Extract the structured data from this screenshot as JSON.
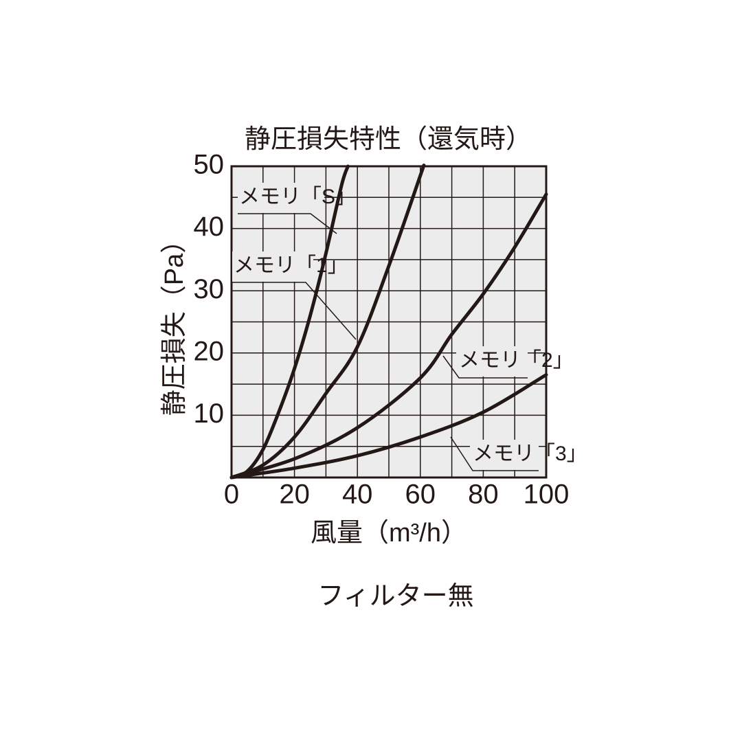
{
  "chart_data": {
    "type": "line",
    "title": "静圧損失特性（還気時）",
    "x_label": "風量（m³/h）",
    "y_label": "静圧損失（Pa）",
    "note": "フィルター無",
    "xlim": [
      0,
      100
    ],
    "ylim": [
      0,
      50
    ],
    "xticks": [
      0,
      20,
      40,
      60,
      80,
      100
    ],
    "yticks": [
      10,
      20,
      30,
      40,
      50
    ],
    "x_gridlines": [
      10,
      30,
      50,
      70,
      90
    ],
    "y_gridlines": [
      5,
      15,
      25,
      35,
      45
    ],
    "grid": true,
    "series": [
      {
        "name": "メモリ「S」",
        "color": "#231815",
        "x": [
          0,
          5,
          10,
          15,
          20,
          25,
          30,
          35,
          37
        ],
        "values": [
          0,
          1,
          4.5,
          10.5,
          17.5,
          26,
          36,
          47,
          50
        ]
      },
      {
        "name": "メモリ「1」",
        "color": "#231815",
        "x": [
          0,
          10,
          20,
          30,
          40,
          50,
          60,
          61
        ],
        "values": [
          0,
          2,
          6.5,
          13.5,
          21,
          34,
          48.5,
          50
        ]
      },
      {
        "name": "メモリ「2」",
        "color": "#231815",
        "x": [
          0,
          20,
          40,
          60,
          70,
          80,
          90,
          100
        ],
        "values": [
          0,
          3,
          8,
          16,
          23,
          29.5,
          37,
          45.5
        ]
      },
      {
        "name": "メモリ「3」",
        "color": "#231815",
        "x": [
          0,
          20,
          40,
          60,
          80,
          100
        ],
        "values": [
          0,
          1.5,
          3.5,
          6.5,
          10.5,
          16.5
        ]
      }
    ]
  }
}
